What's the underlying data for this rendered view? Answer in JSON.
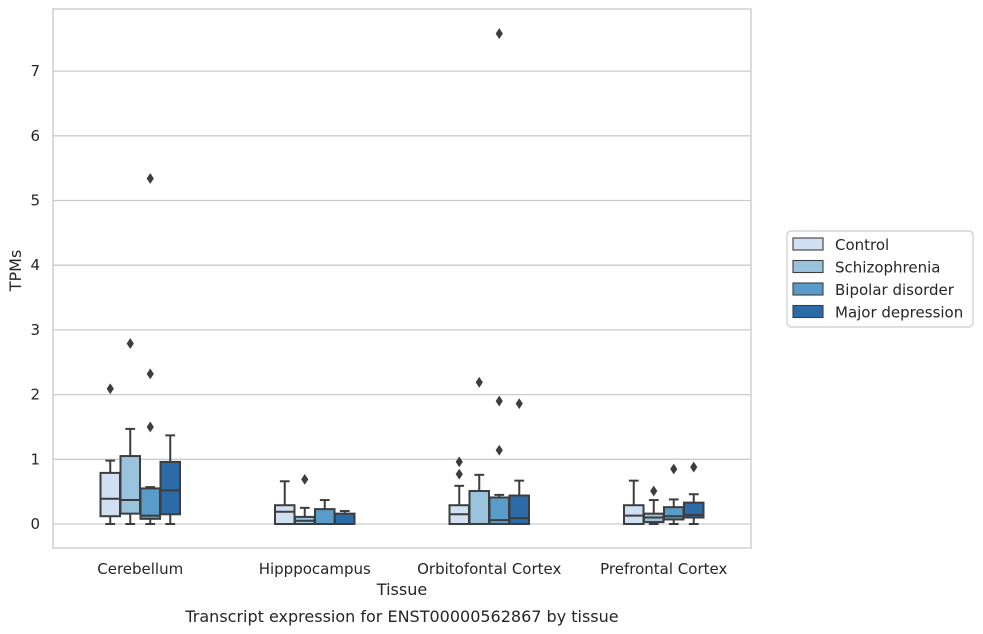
{
  "caption": "Transcript expression for ENST00000562867 by tissue",
  "chart_data": {
    "type": "boxplot",
    "xlabel": "Tissue",
    "ylabel": "TPMs",
    "ylim": [
      -0.38,
      7.95
    ],
    "yticks": [
      0,
      1,
      2,
      3,
      4,
      5,
      6,
      7
    ],
    "grid": "horizontal",
    "legend_position": "right",
    "categories": [
      "Cerebellum",
      "Hipppocampus",
      "Orbitofontal Cortex",
      "Prefrontal Cortex"
    ],
    "series": [
      {
        "name": "Control",
        "color": "#d0e0f2",
        "boxes": [
          {
            "whisker_low": 0.0,
            "q1": 0.12,
            "median": 0.39,
            "q3": 0.79,
            "whisker_high": 0.98,
            "outliers": [
              2.09
            ]
          },
          {
            "whisker_low": 0.0,
            "q1": 0.0,
            "median": 0.19,
            "q3": 0.29,
            "whisker_high": 0.66,
            "outliers": []
          },
          {
            "whisker_low": 0.0,
            "q1": 0.0,
            "median": 0.15,
            "q3": 0.29,
            "whisker_high": 0.59,
            "outliers": [
              0.77,
              0.96
            ]
          },
          {
            "whisker_low": 0.0,
            "q1": 0.0,
            "median": 0.13,
            "q3": 0.29,
            "whisker_high": 0.67,
            "outliers": []
          }
        ]
      },
      {
        "name": "Schizophrenia",
        "color": "#9ac4de",
        "boxes": [
          {
            "whisker_low": 0.0,
            "q1": 0.16,
            "median": 0.37,
            "q3": 1.05,
            "whisker_high": 1.47,
            "outliers": [
              2.79
            ]
          },
          {
            "whisker_low": 0.0,
            "q1": 0.0,
            "median": 0.05,
            "q3": 0.11,
            "whisker_high": 0.25,
            "outliers": [
              0.69
            ]
          },
          {
            "whisker_low": 0.0,
            "q1": 0.0,
            "median": 0.0,
            "q3": 0.51,
            "whisker_high": 0.76,
            "outliers": [
              2.19
            ]
          },
          {
            "whisker_low": 0.0,
            "q1": 0.03,
            "median": 0.1,
            "q3": 0.16,
            "whisker_high": 0.37,
            "outliers": [
              0.51
            ]
          }
        ]
      },
      {
        "name": "Bipolar disorder",
        "color": "#5a9cc9",
        "boxes": [
          {
            "whisker_low": 0.0,
            "q1": 0.08,
            "median": 0.13,
            "q3": 0.55,
            "whisker_high": 0.57,
            "outliers": [
              1.5,
              2.32,
              5.34
            ]
          },
          {
            "whisker_low": 0.0,
            "q1": 0.0,
            "median": 0.0,
            "q3": 0.23,
            "whisker_high": 0.37,
            "outliers": []
          },
          {
            "whisker_low": 0.0,
            "q1": 0.0,
            "median": 0.06,
            "q3": 0.41,
            "whisker_high": 0.45,
            "outliers": [
              1.14,
              1.9,
              7.58
            ]
          },
          {
            "whisker_low": 0.0,
            "q1": 0.07,
            "median": 0.12,
            "q3": 0.26,
            "whisker_high": 0.38,
            "outliers": [
              0.85
            ]
          }
        ]
      },
      {
        "name": "Major depression",
        "color": "#2c6aa8",
        "boxes": [
          {
            "whisker_low": 0.0,
            "q1": 0.15,
            "median": 0.52,
            "q3": 0.96,
            "whisker_high": 1.37,
            "outliers": []
          },
          {
            "whisker_low": 0.0,
            "q1": 0.0,
            "median": 0.0,
            "q3": 0.16,
            "whisker_high": 0.2,
            "outliers": []
          },
          {
            "whisker_low": 0.0,
            "q1": 0.0,
            "median": 0.09,
            "q3": 0.44,
            "whisker_high": 0.67,
            "outliers": [
              1.86
            ]
          },
          {
            "whisker_low": 0.0,
            "q1": 0.1,
            "median": 0.14,
            "q3": 0.33,
            "whisker_high": 0.46,
            "outliers": [
              0.88
            ]
          }
        ]
      }
    ]
  }
}
